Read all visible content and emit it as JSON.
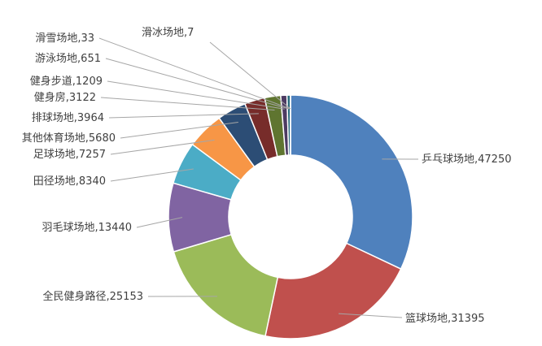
{
  "chart_data": {
    "type": "pie",
    "donut": true,
    "title": "",
    "legend": "none",
    "series": [
      {
        "label": "乒乓球场地",
        "value": 47250,
        "color": "#4f81bd"
      },
      {
        "label": "篮球场地",
        "value": 31395,
        "color": "#c0504d"
      },
      {
        "label": "全民健身路径",
        "value": 25153,
        "color": "#9bbb59"
      },
      {
        "label": "羽毛球场地",
        "value": 13440,
        "color": "#8064a2"
      },
      {
        "label": "田径场地",
        "value": 8340,
        "color": "#4bacc6"
      },
      {
        "label": "足球场地",
        "value": 7257,
        "color": "#f79646"
      },
      {
        "label": "其他体育场地",
        "value": 5680,
        "color": "#2c4d75"
      },
      {
        "label": "排球场地",
        "value": 3964,
        "color": "#772c2a"
      },
      {
        "label": "健身房",
        "value": 3122,
        "color": "#5f7530"
      },
      {
        "label": "健身步道",
        "value": 1209,
        "color": "#4d3b62"
      },
      {
        "label": "游泳场地",
        "value": 651,
        "color": "#276a7c"
      },
      {
        "label": "滑雪场地",
        "value": 33,
        "color": "#b65708"
      },
      {
        "label": "滑冰场地",
        "value": 7,
        "color": "#729aca"
      }
    ]
  }
}
